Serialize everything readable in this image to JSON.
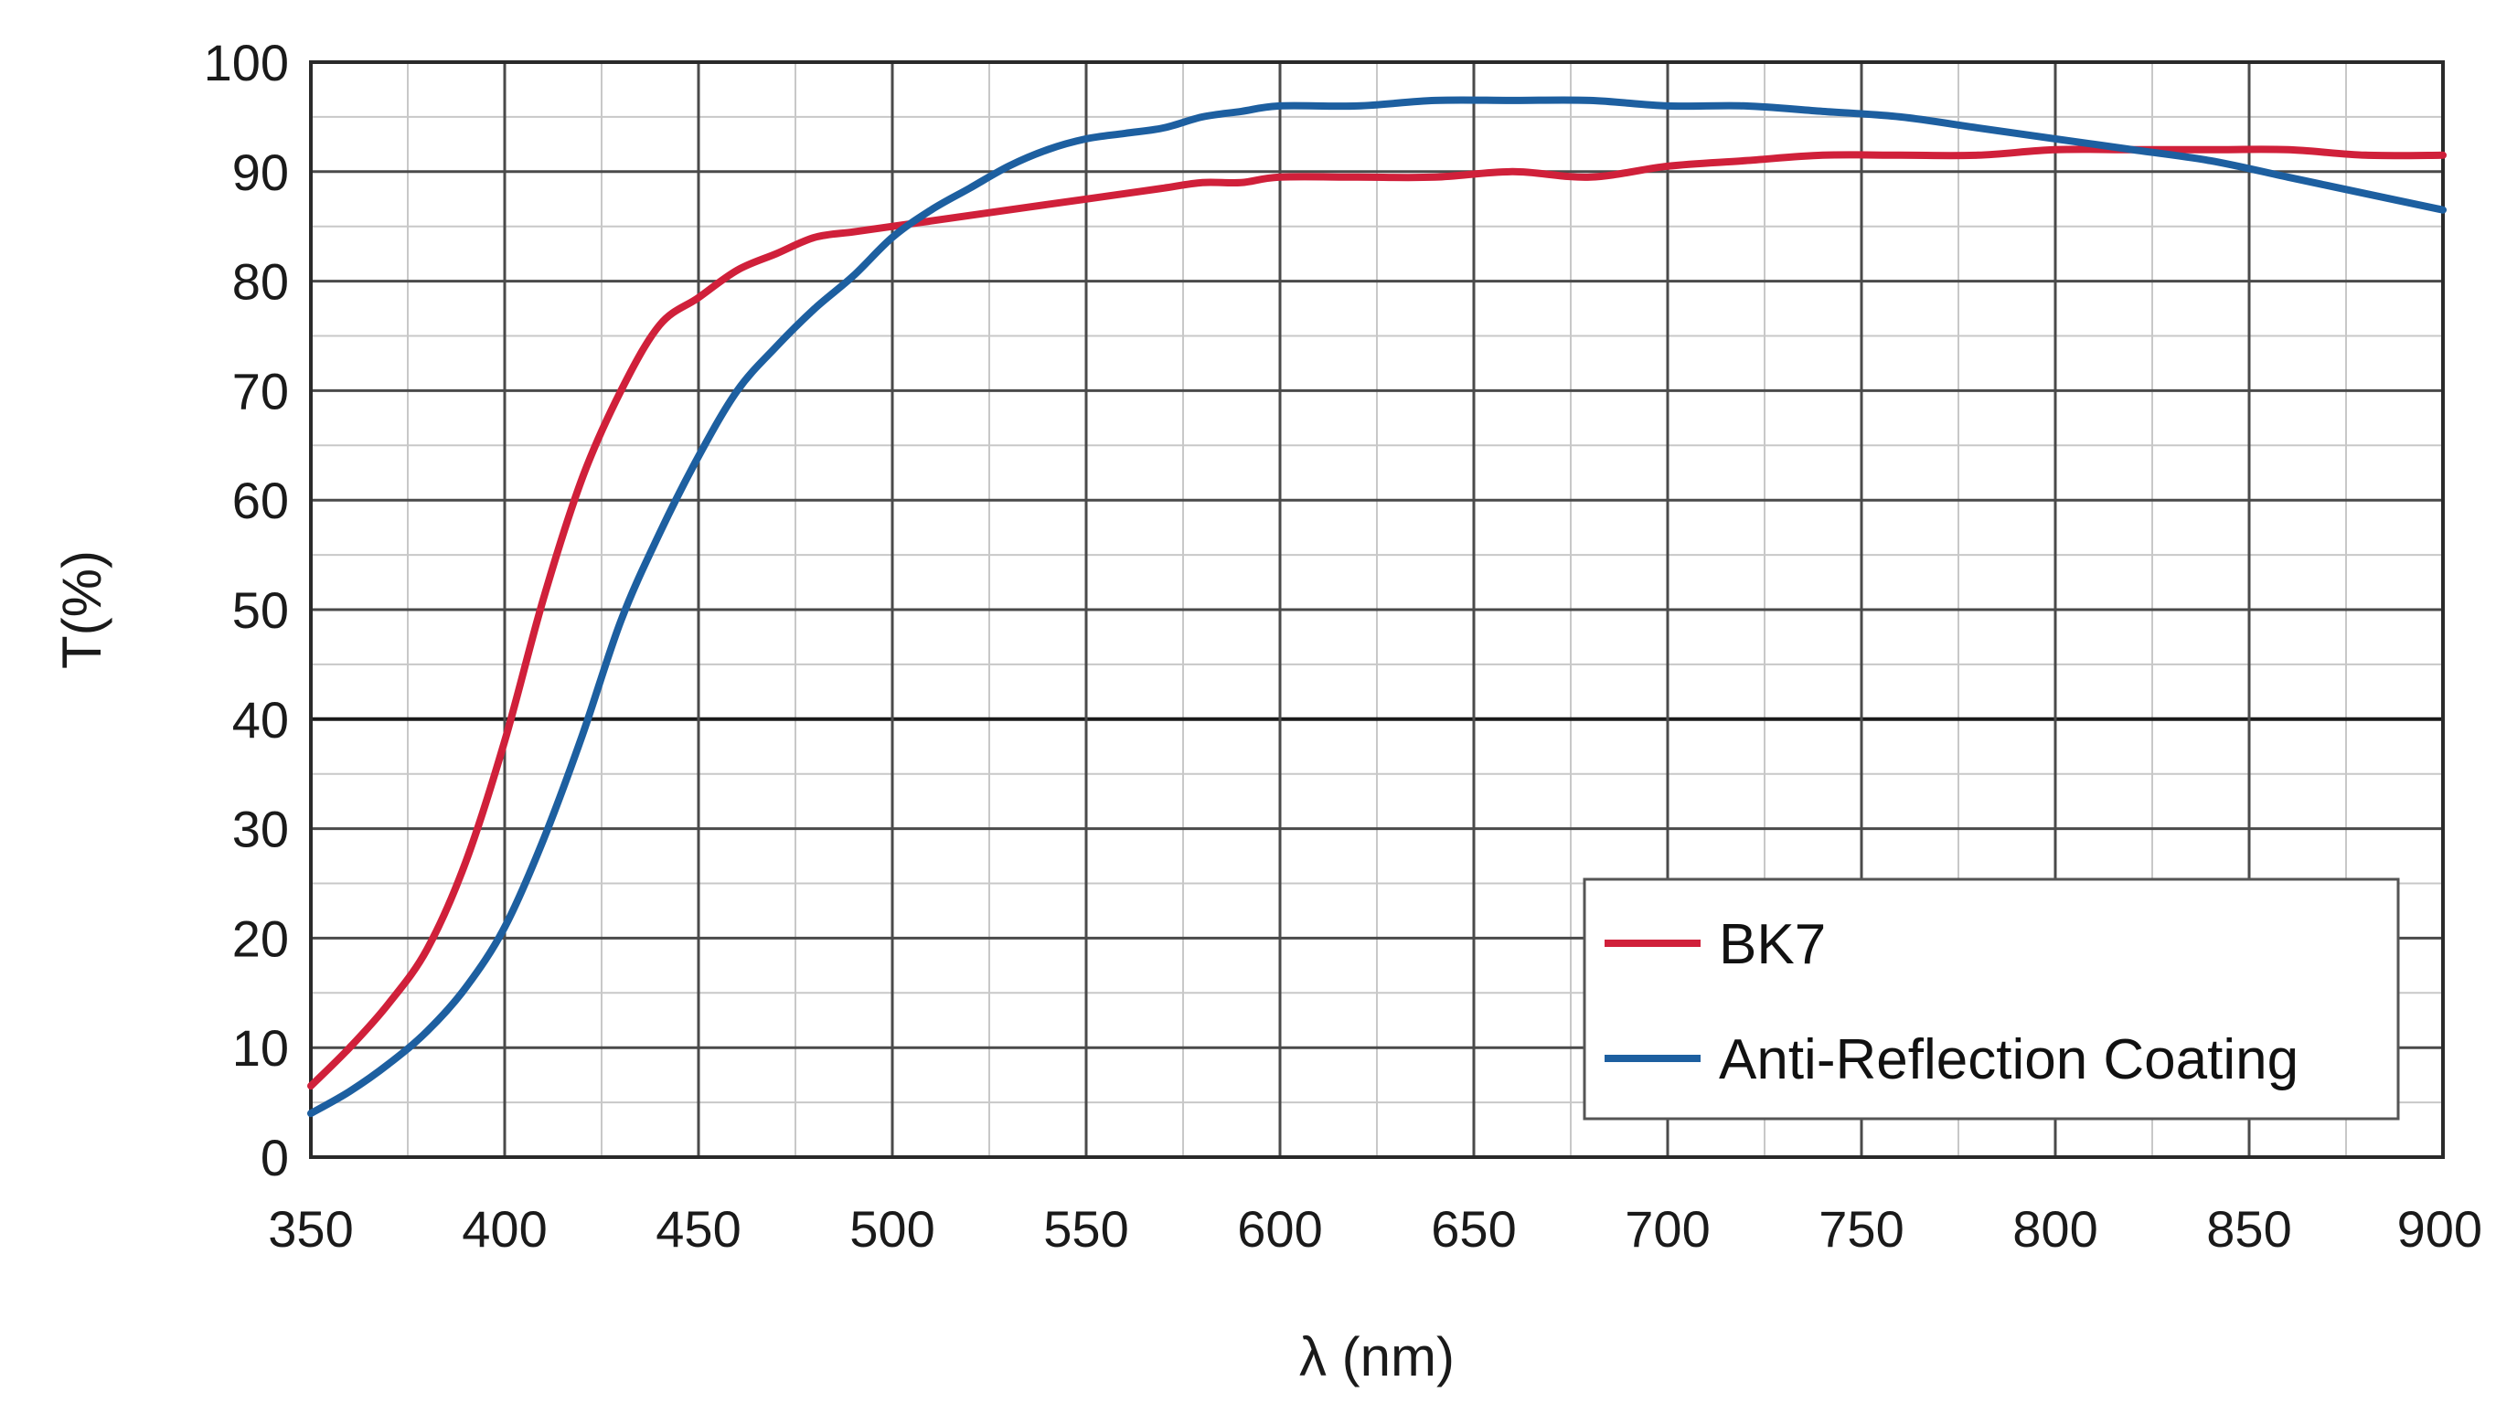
{
  "chart_data": {
    "type": "line",
    "title": "",
    "xlabel": "λ (nm)",
    "ylabel": "T(%)",
    "xlim": [
      350,
      900
    ],
    "ylim": [
      0,
      100
    ],
    "x_ticks": [
      350,
      400,
      450,
      500,
      550,
      600,
      650,
      700,
      750,
      800,
      850,
      900
    ],
    "y_ticks": [
      0,
      10,
      20,
      30,
      40,
      50,
      60,
      70,
      80,
      90,
      100
    ],
    "grid": true,
    "legend": "bottom-right",
    "series": [
      {
        "name": "BK7",
        "color": "#d0203a",
        "x": [
          350,
          360,
          370,
          380,
          390,
          400,
          410,
          420,
          430,
          440,
          450,
          460,
          470,
          480,
          490,
          500,
          510,
          520,
          530,
          540,
          550,
          560,
          570,
          580,
          590,
          600,
          620,
          640,
          660,
          680,
          700,
          720,
          740,
          760,
          780,
          800,
          820,
          840,
          860,
          880,
          900
        ],
        "values": [
          6.5,
          10,
          14,
          19,
          27,
          38,
          51,
          62,
          70,
          76,
          78.5,
          81,
          82.5,
          84,
          84.5,
          85,
          85.5,
          86,
          86.5,
          87,
          87.5,
          88,
          88.5,
          89,
          89,
          89.5,
          89.5,
          89.5,
          90,
          89.5,
          90.5,
          91,
          91.5,
          91.5,
          91.5,
          92,
          92,
          92,
          92,
          91.5,
          91.5
        ]
      },
      {
        "name": "Anti-Reflection Coating",
        "color": "#1d5fa0",
        "x": [
          350,
          360,
          370,
          380,
          390,
          400,
          410,
          420,
          430,
          440,
          450,
          460,
          470,
          480,
          490,
          500,
          510,
          520,
          530,
          540,
          550,
          560,
          570,
          580,
          590,
          600,
          620,
          640,
          660,
          680,
          700,
          720,
          740,
          760,
          780,
          800,
          820,
          840,
          860,
          880,
          900
        ],
        "values": [
          4,
          6,
          8.5,
          11.5,
          15.5,
          21,
          29,
          38.5,
          49,
          57,
          64,
          70,
          74,
          77.5,
          80.5,
          84,
          86.5,
          88.5,
          90.5,
          92,
          93,
          93.5,
          94,
          95,
          95.5,
          96,
          96,
          96.5,
          96.5,
          96.5,
          96,
          96,
          95.5,
          95,
          94,
          93,
          92,
          91,
          89.5,
          88,
          86.5
        ]
      }
    ]
  }
}
